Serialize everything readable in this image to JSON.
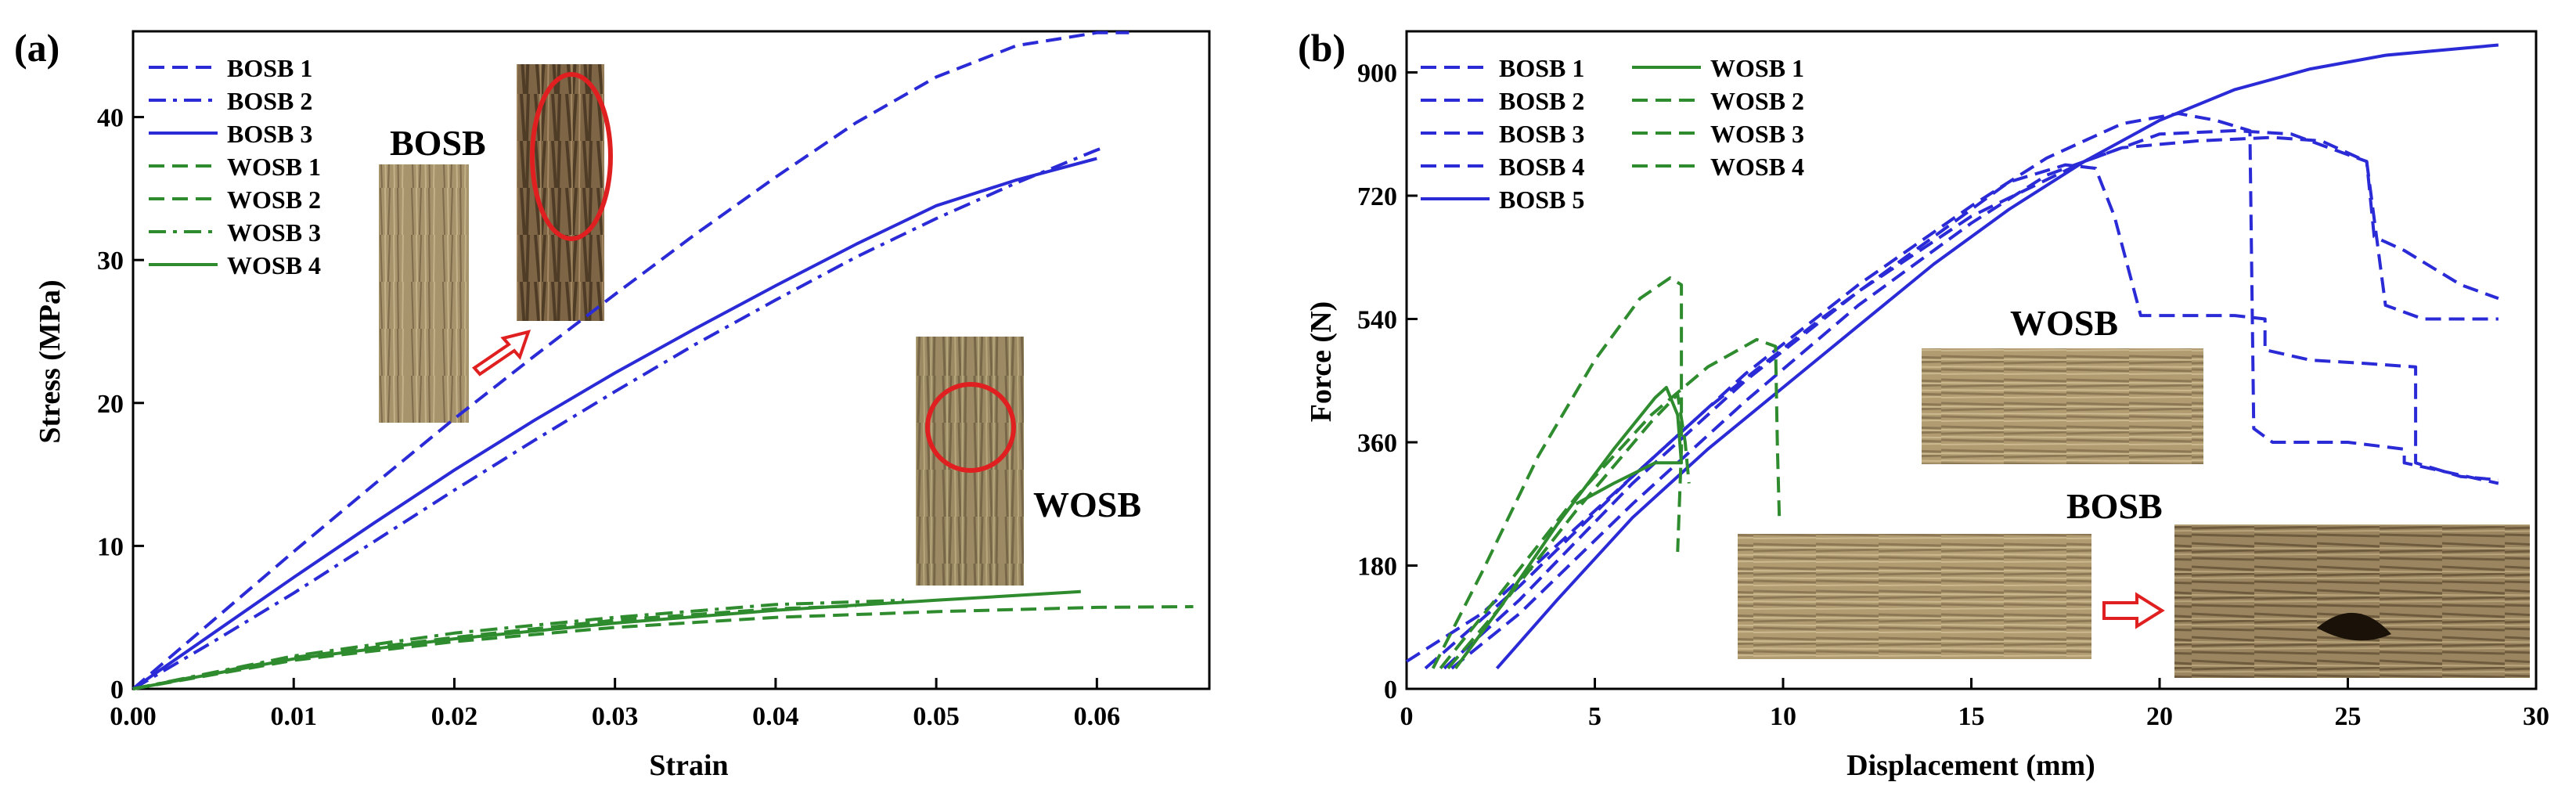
{
  "chart_data": [
    {
      "type": "line",
      "panel_label": "(a)",
      "xlabel": "Strain",
      "ylabel": "Stress (MPa)",
      "xlim": [
        0.0,
        0.067
      ],
      "ylim": [
        0,
        46
      ],
      "xticks": [
        "0.00",
        "0.01",
        "0.02",
        "0.03",
        "0.04",
        "0.05",
        "0.06"
      ],
      "xtick_values": [
        0,
        0.01,
        0.02,
        0.03,
        0.04,
        0.05,
        0.06
      ],
      "yticks": [
        "0",
        "10",
        "20",
        "30",
        "40"
      ],
      "ytick_values": [
        0,
        10,
        20,
        30,
        40
      ],
      "legend_position": "top-left",
      "photo_labels": [
        "BOSB",
        "WOSB"
      ],
      "series": [
        {
          "name": "BOSB 1",
          "color": "#2a2ad6",
          "dash": "dash",
          "x": [
            0,
            0.005,
            0.01,
            0.015,
            0.02,
            0.025,
            0.03,
            0.035,
            0.04,
            0.045,
            0.05,
            0.055,
            0.06,
            0.062
          ],
          "y": [
            0,
            4.8,
            9.6,
            14.3,
            18.9,
            23.3,
            27.6,
            31.8,
            35.8,
            39.6,
            42.8,
            45.0,
            45.9,
            45.9
          ]
        },
        {
          "name": "BOSB 2",
          "color": "#2a2ad6",
          "dash": "dashdot",
          "x": [
            0,
            0.005,
            0.01,
            0.015,
            0.02,
            0.025,
            0.03,
            0.035,
            0.04,
            0.045,
            0.05,
            0.055,
            0.06,
            0.0605
          ],
          "y": [
            0,
            3.3,
            6.7,
            10.3,
            13.9,
            17.4,
            20.8,
            24.1,
            27.2,
            30.2,
            32.9,
            35.4,
            37.7,
            37.9
          ]
        },
        {
          "name": "BOSB 3",
          "color": "#2a2ad6",
          "dash": "solid",
          "x": [
            0,
            0.005,
            0.01,
            0.015,
            0.02,
            0.025,
            0.03,
            0.035,
            0.04,
            0.045,
            0.05,
            0.055,
            0.06
          ],
          "y": [
            0,
            3.9,
            7.8,
            11.6,
            15.3,
            18.8,
            22.1,
            25.2,
            28.2,
            31.1,
            33.8,
            35.6,
            37.1
          ]
        },
        {
          "name": "WOSB 1",
          "color": "#2e8b2e",
          "dash": "dash",
          "x": [
            0,
            0.01,
            0.02,
            0.03,
            0.04,
            0.05,
            0.06,
            0.066
          ],
          "y": [
            0,
            2.0,
            3.3,
            4.3,
            5.0,
            5.4,
            5.7,
            5.75
          ]
        },
        {
          "name": "WOSB 2",
          "color": "#2e8b2e",
          "dash": "dash",
          "x": [
            0,
            0.01,
            0.02,
            0.03,
            0.04,
            0.045
          ],
          "y": [
            0,
            2.2,
            3.6,
            4.8,
            5.6,
            5.8
          ]
        },
        {
          "name": "WOSB 3",
          "color": "#2e8b2e",
          "dash": "dashdot",
          "x": [
            0,
            0.01,
            0.02,
            0.03,
            0.04,
            0.048
          ],
          "y": [
            0,
            2.3,
            3.9,
            5.0,
            5.9,
            6.2
          ]
        },
        {
          "name": "WOSB 4",
          "color": "#2e8b2e",
          "dash": "solid",
          "x": [
            0,
            0.01,
            0.02,
            0.03,
            0.04,
            0.05,
            0.059
          ],
          "y": [
            0,
            2.1,
            3.5,
            4.6,
            5.5,
            6.2,
            6.8
          ]
        }
      ]
    },
    {
      "type": "line",
      "panel_label": "(b)",
      "xlabel": "Displacement (mm)",
      "ylabel": "Force (N)",
      "xlim": [
        0,
        30
      ],
      "ylim": [
        0,
        960
      ],
      "xticks": [
        "0",
        "5",
        "10",
        "15",
        "20",
        "25",
        "30"
      ],
      "xtick_values": [
        0,
        5,
        10,
        15,
        20,
        25,
        30
      ],
      "yticks": [
        "0",
        "180",
        "360",
        "540",
        "720",
        "900"
      ],
      "ytick_values": [
        0,
        180,
        360,
        540,
        720,
        900
      ],
      "legend_position": "top-left",
      "photo_labels": [
        "WOSB",
        "BOSB"
      ],
      "series": [
        {
          "name": "BOSB 1",
          "color": "#2a2ad6",
          "dash": "dash",
          "x": [
            0,
            2,
            5,
            8,
            11,
            14,
            16,
            17.5,
            18.3,
            18.8,
            19.5,
            22,
            22.8,
            22.8,
            24,
            25.5,
            26.8,
            26.8,
            28,
            29
          ],
          "y": [
            40,
            110,
            260,
            410,
            540,
            660,
            740,
            765,
            760,
            690,
            545,
            545,
            540,
            495,
            480,
            475,
            470,
            330,
            310,
            305
          ]
        },
        {
          "name": "BOSB 2",
          "color": "#2a2ad6",
          "dash": "dash",
          "x": [
            0.5,
            3,
            6,
            9,
            12,
            15,
            17,
            19,
            20.5,
            21.5,
            22.4,
            22.5,
            23,
            25,
            26.5,
            26.5,
            29
          ],
          "y": [
            30,
            150,
            310,
            460,
            590,
            705,
            775,
            825,
            840,
            830,
            815,
            380,
            360,
            360,
            350,
            330,
            300
          ]
        },
        {
          "name": "BOSB 3",
          "color": "#2a2ad6",
          "dash": "dash",
          "x": [
            1,
            3,
            6,
            9,
            12,
            15,
            18,
            20,
            22,
            23.5,
            24.5,
            25.5,
            25.7,
            26.5,
            28,
            29
          ],
          "y": [
            30,
            130,
            300,
            450,
            580,
            690,
            770,
            810,
            815,
            810,
            790,
            770,
            660,
            640,
            590,
            570
          ]
        },
        {
          "name": "BOSB 4",
          "color": "#2a2ad6",
          "dash": "dash",
          "x": [
            1.2,
            3,
            6,
            9,
            12,
            15,
            17,
            19,
            21,
            23,
            24.3,
            25.5,
            26,
            27,
            29
          ],
          "y": [
            30,
            110,
            270,
            420,
            560,
            680,
            750,
            790,
            800,
            805,
            800,
            770,
            560,
            540,
            540
          ]
        },
        {
          "name": "BOSB 5",
          "color": "#2a2ad6",
          "dash": "solid",
          "x": [
            2.4,
            4,
            6,
            8,
            10,
            12,
            14,
            16,
            18,
            20,
            22,
            24,
            26,
            28,
            29
          ],
          "y": [
            30,
            130,
            250,
            350,
            440,
            530,
            620,
            700,
            770,
            830,
            875,
            905,
            925,
            935,
            940
          ]
        },
        {
          "name": "WOSB 1",
          "color": "#2e8b2e",
          "dash": "solid",
          "x": [
            1.3,
            2.5,
            4,
            5.5,
            6.6,
            6.9,
            7.2,
            7.3,
            6.6,
            5.5,
            4.5
          ],
          "y": [
            30,
            120,
            240,
            350,
            425,
            440,
            400,
            330,
            330,
            300,
            270
          ]
        },
        {
          "name": "WOSB 2",
          "color": "#2e8b2e",
          "dash": "dash",
          "x": [
            0.7,
            2,
            3.5,
            5,
            6.2,
            7.0,
            7.3,
            7.3,
            7.2
          ],
          "y": [
            30,
            170,
            340,
            480,
            570,
            600,
            590,
            350,
            200
          ]
        },
        {
          "name": "WOSB 3",
          "color": "#2e8b2e",
          "dash": "dash",
          "x": [
            0.9,
            2.5,
            4.5,
            6.5,
            8,
            9.3,
            9.8,
            9.85,
            9.9
          ],
          "y": [
            30,
            140,
            280,
            400,
            470,
            510,
            500,
            350,
            250
          ]
        },
        {
          "name": "WOSB 4",
          "color": "#2e8b2e",
          "dash": "dash",
          "x": [
            1.1,
            2.5,
            4.5,
            6.5,
            7.2,
            7.4,
            7.5
          ],
          "y": [
            30,
            120,
            260,
            390,
            430,
            360,
            300
          ]
        }
      ]
    }
  ]
}
